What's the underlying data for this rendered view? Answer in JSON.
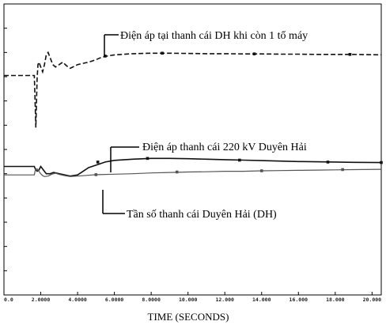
{
  "chart_data": {
    "type": "line",
    "xlabel": "TIME (SECONDS)",
    "ylabel": "",
    "title": "",
    "xlim": [
      0,
      20.5
    ],
    "ylim": [
      0,
      12
    ],
    "x_ticks": [
      0,
      2,
      4,
      6,
      8,
      10,
      12,
      14,
      16,
      18,
      20
    ],
    "x_tick_labels": [
      "0.0",
      "2.0000",
      "4.0000",
      "6.0000",
      "8.0000",
      "10.000",
      "12.000",
      "14.000",
      "16.000",
      "18.000",
      "20.000"
    ],
    "grid": false,
    "series": [
      {
        "color": "#111111",
        "style": "dashed",
        "x": [
          0,
          1.65,
          1.7,
          1.73,
          1.76,
          1.8,
          1.85,
          1.9,
          2.0,
          2.1,
          2.2,
          2.3,
          2.4,
          2.5,
          2.65,
          2.8,
          3.0,
          3.2,
          3.4,
          3.6,
          3.8,
          4.0,
          4.3,
          4.6,
          5.0,
          5.3,
          5.6,
          6.0,
          7.0,
          8.0,
          9.0,
          10.0,
          11.0,
          12.0,
          13.0,
          14.0,
          15.0,
          16.0,
          17.0,
          18.0,
          19.0,
          20.5
        ],
        "y": [
          9.05,
          9.05,
          7.7,
          6.9,
          7.8,
          8.9,
          9.5,
          9.6,
          9.4,
          9.2,
          9.5,
          9.9,
          10.0,
          9.8,
          9.5,
          9.4,
          9.5,
          9.6,
          9.45,
          9.35,
          9.42,
          9.5,
          9.55,
          9.6,
          9.7,
          9.8,
          9.85,
          9.9,
          9.95,
          9.97,
          9.97,
          9.96,
          9.95,
          9.95,
          9.94,
          9.94,
          9.93,
          9.93,
          9.92,
          9.92,
          9.92,
          9.9
        ]
      },
      {
        "name": "Điện áp thanh cái 220 kV Duyên Hải",
        "color": "#111111",
        "style": "solid",
        "x": [
          0,
          1.65,
          1.7,
          1.8,
          1.9,
          2.0,
          2.15,
          2.3,
          2.5,
          2.7,
          3.0,
          3.3,
          3.6,
          4.0,
          4.3,
          4.6,
          5.0,
          5.5,
          6.0,
          7.0,
          8.0,
          9.0,
          10.0,
          11.0,
          12.0,
          13.0,
          14.0,
          15.0,
          16.0,
          17.0,
          18.0,
          19.0,
          20.5
        ],
        "y": [
          5.3,
          5.3,
          5.2,
          5.1,
          5.15,
          5.3,
          5.15,
          5.0,
          5.0,
          5.05,
          5.0,
          4.95,
          4.9,
          4.95,
          5.1,
          5.25,
          5.35,
          5.48,
          5.55,
          5.6,
          5.63,
          5.63,
          5.62,
          5.6,
          5.58,
          5.56,
          5.54,
          5.52,
          5.5,
          5.49,
          5.48,
          5.47,
          5.46
        ]
      },
      {
        "name": "Tần số thanh cái Duyên Hải (DH)",
        "color": "#555555",
        "style": "solid",
        "x": [
          0,
          1.65,
          1.7,
          1.8,
          1.9,
          2.0,
          2.1,
          2.2,
          2.4,
          2.6,
          2.8,
          3.0,
          3.3,
          3.6,
          4.0,
          4.5,
          5.0,
          6.0,
          7.0,
          8.0,
          9.0,
          10.0,
          11.0,
          12.0,
          13.0,
          14.0,
          15.0,
          16.0,
          17.0,
          18.0,
          19.0,
          20.5
        ],
        "y": [
          4.95,
          4.95,
          5.15,
          5.2,
          5.1,
          5.0,
          4.92,
          4.88,
          4.9,
          4.98,
          5.02,
          4.97,
          4.92,
          4.88,
          4.9,
          4.93,
          4.96,
          4.98,
          5.0,
          5.03,
          5.05,
          5.07,
          5.08,
          5.1,
          5.1,
          5.12,
          5.13,
          5.14,
          5.15,
          5.16,
          5.17,
          5.18
        ]
      }
    ],
    "annotations": [
      {
        "text": "Điện áp tại thanh cái DH khi còn 1 tổ máy"
      },
      {
        "text": "Điện áp thanh cái 220 kV Duyên Hải"
      },
      {
        "text": "Tần số thanh cái Duyên Hải (DH)"
      }
    ]
  }
}
